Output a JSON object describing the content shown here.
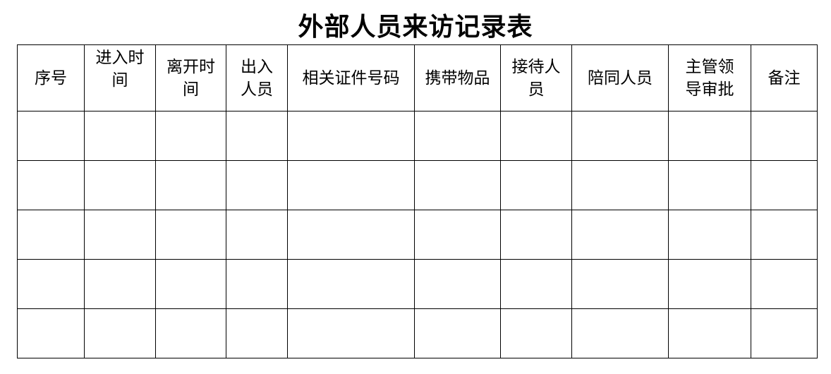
{
  "title": "外部人员来访记录表",
  "table": {
    "headers": [
      "序号",
      "进入时\n间",
      "离开时\n间",
      "出入\n人员",
      "相关证件号码",
      "携带物品",
      "接待人\n员",
      "陪同人员",
      "主管领\n导审批",
      "备注"
    ],
    "rows": [
      [
        "",
        "",
        "",
        "",
        "",
        "",
        "",
        "",
        "",
        ""
      ],
      [
        "",
        "",
        "",
        "",
        "",
        "",
        "",
        "",
        "",
        ""
      ],
      [
        "",
        "",
        "",
        "",
        "",
        "",
        "",
        "",
        "",
        ""
      ],
      [
        "",
        "",
        "",
        "",
        "",
        "",
        "",
        "",
        "",
        ""
      ],
      [
        "",
        "",
        "",
        "",
        "",
        "",
        "",
        "",
        "",
        ""
      ]
    ]
  }
}
